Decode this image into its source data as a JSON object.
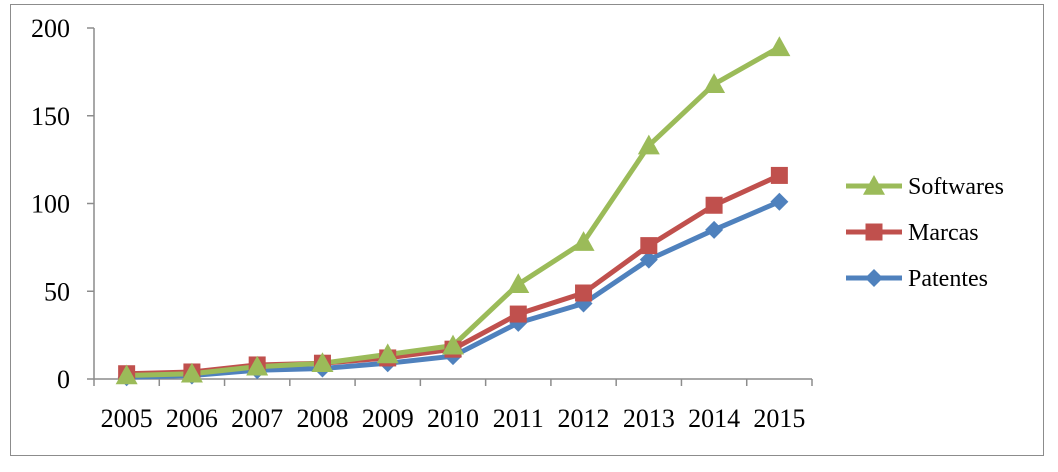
{
  "chart_data": {
    "type": "line",
    "title": "",
    "xlabel": "",
    "ylabel": "",
    "x": [
      "2005",
      "2006",
      "2007",
      "2008",
      "2009",
      "2010",
      "2011",
      "2012",
      "2013",
      "2014",
      "2015"
    ],
    "ylim": [
      0,
      200
    ],
    "yticks": [
      "0",
      "50",
      "100",
      "150",
      "200"
    ],
    "grid": false,
    "legend_position": "right",
    "series": [
      {
        "name": "Softwares",
        "color": "#9bbb59",
        "marker": "triangle",
        "values": [
          2,
          3,
          7,
          9,
          14,
          19,
          54,
          78,
          133,
          168,
          189
        ]
      },
      {
        "name": "Marcas",
        "color": "#c0504d",
        "marker": "square",
        "values": [
          3,
          4,
          8,
          9,
          12,
          17,
          37,
          49,
          76,
          99,
          116
        ]
      },
      {
        "name": "Patentes",
        "color": "#4f81bd",
        "marker": "diamond",
        "values": [
          1,
          2,
          5,
          6,
          9,
          13,
          32,
          43,
          68,
          85,
          101
        ]
      }
    ],
    "legend_order": [
      "Softwares",
      "Marcas",
      "Patentes"
    ]
  }
}
